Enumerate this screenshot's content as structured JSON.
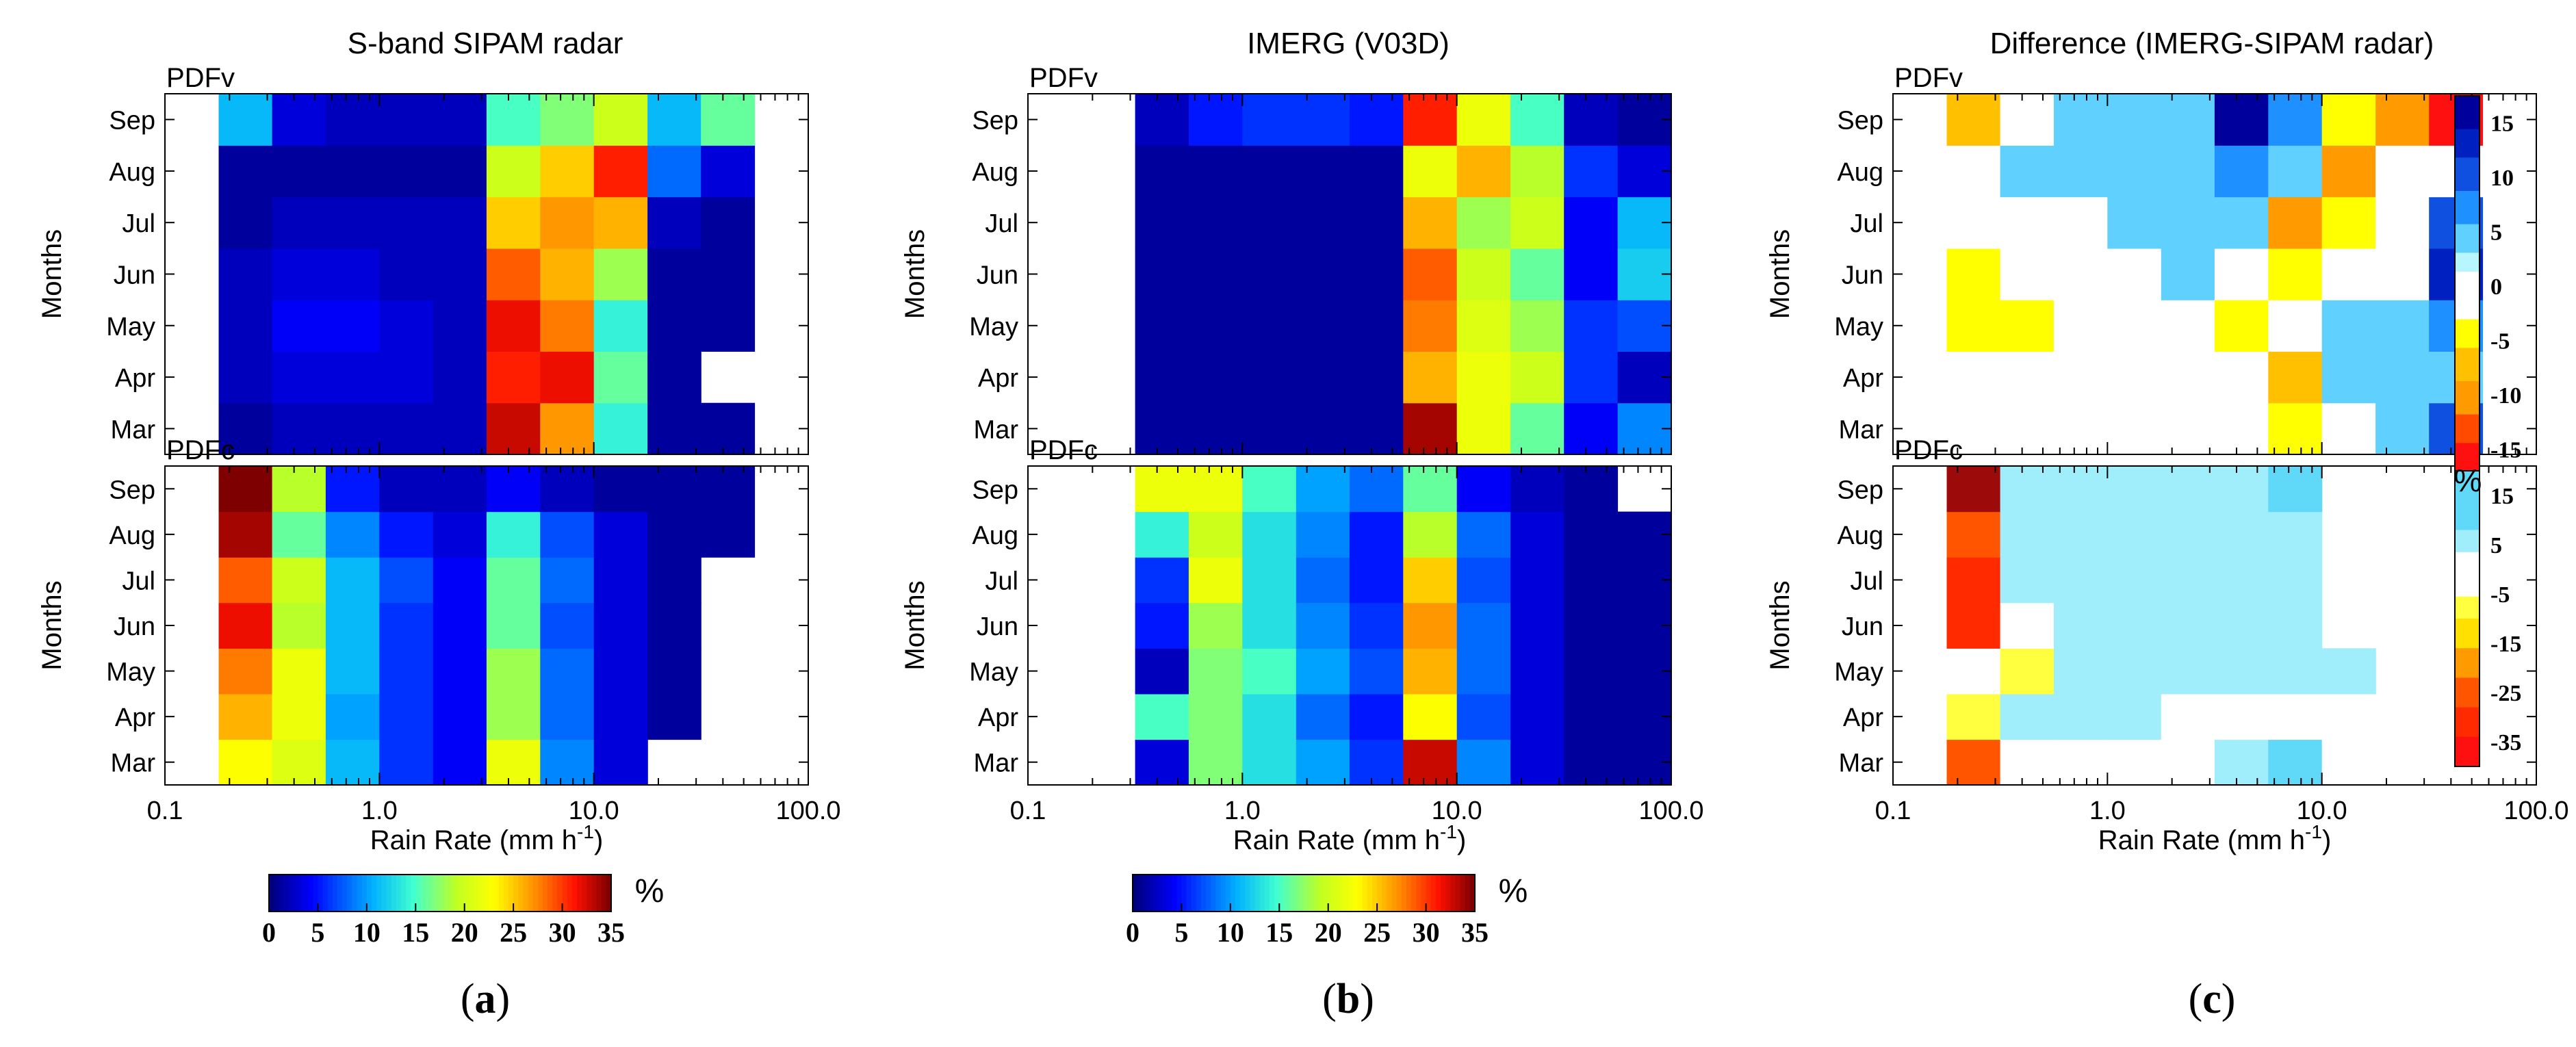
{
  "months": [
    "Mar",
    "Apr",
    "May",
    "Jun",
    "Jul",
    "Aug",
    "Sep"
  ],
  "x_ticks": [
    "0.1",
    "1.0",
    "10.0",
    "100.0"
  ],
  "xlabel": "Rain Rate (mm h",
  "xlabel_sup": "-1",
  "xlabel_end": ")",
  "ylabel": "Months",
  "pct_symbol": "%",
  "colormap_abs": {
    "ticks": [
      "0",
      "5",
      "10",
      "15",
      "20",
      "25",
      "30",
      "35"
    ],
    "min": 0,
    "max": 35
  },
  "colormap_diff_v": {
    "ticks": [
      "15",
      "10",
      "5",
      "0",
      "-5",
      "-10",
      "-15"
    ],
    "min": -15,
    "max": 15
  },
  "colormap_diff_c": {
    "ticks": [
      "15",
      "5",
      "-5",
      "-15",
      "-25",
      "-35"
    ],
    "min": -35,
    "max": 15
  },
  "chart_data": [
    {
      "type": "heatmap",
      "title": "S-band SIPAM radar",
      "panel_label": "a",
      "x_bin_edges": [
        0.1,
        0.178,
        0.316,
        0.562,
        1.0,
        1.78,
        3.16,
        5.62,
        10.0,
        17.8,
        31.6,
        56.2,
        100.0
      ],
      "y_categories": [
        "Mar",
        "Apr",
        "May",
        "Jun",
        "Jul",
        "Aug",
        "Sep"
      ],
      "subplots": [
        {
          "label": "PDFv",
          "values": [
            [
              null,
              1,
              2,
              2,
              2,
              2,
              33,
              27,
              14,
              1,
              1,
              null
            ],
            [
              null,
              2,
              3,
              3,
              3,
              2,
              31,
              32,
              16,
              1,
              null,
              null
            ],
            [
              null,
              2,
              4,
              4,
              3,
              2,
              32,
              28,
              14,
              1,
              1,
              null
            ],
            [
              null,
              2,
              3,
              3,
              2,
              2,
              29,
              26,
              18,
              1,
              1,
              null
            ],
            [
              null,
              1,
              2,
              2,
              2,
              2,
              25,
              27,
              26,
              2,
              1,
              null
            ],
            [
              null,
              1,
              1,
              1,
              1,
              1,
              20,
              25,
              31,
              8,
              3,
              null
            ],
            [
              null,
              11,
              3,
              2,
              2,
              2,
              15,
              17,
              20,
              11,
              16,
              null
            ]
          ]
        },
        {
          "label": "PDFc",
          "values": [
            [
              null,
              23,
              21,
              11,
              6,
              4,
              22,
              9,
              3,
              null,
              null,
              null
            ],
            [
              null,
              26,
              22,
              10,
              6,
              4,
              18,
              8,
              3,
              1,
              null,
              null
            ],
            [
              null,
              28,
              22,
              11,
              6,
              4,
              18,
              8,
              3,
              1,
              null,
              null
            ],
            [
              null,
              32,
              19,
              11,
              6,
              4,
              16,
              7,
              3,
              1,
              null,
              null
            ],
            [
              null,
              29,
              20,
              11,
              7,
              4,
              16,
              8,
              3,
              1,
              null,
              null
            ],
            [
              null,
              34,
              16,
              9,
              5,
              3,
              14,
              7,
              3,
              1,
              1,
              null
            ],
            [
              null,
              35,
              19,
              5,
              2,
              2,
              4,
              2,
              1,
              1,
              1,
              null
            ]
          ]
        }
      ]
    },
    {
      "type": "heatmap",
      "title": "IMERG (V03D)",
      "panel_label": "b",
      "x_bin_edges": [
        0.1,
        0.178,
        0.316,
        0.562,
        1.0,
        1.78,
        3.16,
        5.62,
        10.0,
        17.8,
        31.6,
        56.2,
        100.0
      ],
      "y_categories": [
        "Mar",
        "Apr",
        "May",
        "Jun",
        "Jul",
        "Aug",
        "Sep"
      ],
      "subplots": [
        {
          "label": "PDFv",
          "values": [
            [
              null,
              null,
              1,
              1,
              1,
              1,
              1,
              34,
              22,
              16,
              4,
              9
            ],
            [
              null,
              null,
              1,
              1,
              1,
              1,
              1,
              26,
              22,
              20,
              6,
              2
            ],
            [
              null,
              null,
              1,
              1,
              1,
              1,
              1,
              28,
              21,
              18,
              6,
              7
            ],
            [
              null,
              null,
              1,
              1,
              1,
              1,
              1,
              29,
              20,
              16,
              4,
              12
            ],
            [
              null,
              null,
              1,
              1,
              1,
              1,
              1,
              26,
              18,
              20,
              4,
              11
            ],
            [
              null,
              null,
              1,
              1,
              1,
              1,
              1,
              22,
              26,
              19,
              6,
              3
            ],
            [
              null,
              null,
              2,
              5,
              6,
              6,
              5,
              31,
              22,
              15,
              2,
              1
            ]
          ]
        },
        {
          "label": "PDFc",
          "values": [
            [
              null,
              null,
              3,
              17,
              13,
              10,
              6,
              33,
              9,
              3,
              1,
              1
            ],
            [
              null,
              null,
              15,
              17,
              13,
              8,
              5,
              23,
              7,
              3,
              1,
              1
            ],
            [
              null,
              null,
              2,
              17,
              15,
              10,
              7,
              26,
              8,
              3,
              1,
              1
            ],
            [
              null,
              null,
              5,
              18,
              13,
              9,
              6,
              27,
              8,
              3,
              1,
              1
            ],
            [
              null,
              null,
              6,
              22,
              13,
              8,
              5,
              25,
              7,
              3,
              1,
              1
            ],
            [
              null,
              null,
              14,
              20,
              13,
              9,
              5,
              19,
              8,
              3,
              1,
              1
            ],
            [
              null,
              null,
              22,
              22,
              15,
              10,
              8,
              16,
              4,
              2,
              1,
              null
            ]
          ]
        }
      ]
    },
    {
      "type": "heatmap",
      "title": "Difference (IMERG-SIPAM radar)",
      "panel_label": "c",
      "x_bin_edges": [
        0.1,
        0.178,
        0.316,
        0.562,
        1.0,
        1.78,
        3.16,
        5.62,
        10.0,
        17.8,
        31.6,
        56.2,
        100.0
      ],
      "y_categories": [
        "Mar",
        "Apr",
        "May",
        "Jun",
        "Jul",
        "Aug",
        "Sep"
      ],
      "subplots": [
        {
          "label": "PDFv",
          "values": [
            [
              null,
              -2,
              -2,
              -2,
              -2,
              0,
              0,
              -3,
              0,
              4,
              9,
              null
            ],
            [
              null,
              -2,
              -2,
              0,
              0,
              0,
              -2,
              -6,
              4,
              4,
              4,
              null
            ],
            [
              null,
              -3,
              -3,
              0,
              0,
              0,
              -4,
              -2,
              4,
              4,
              6,
              null
            ],
            [
              null,
              -3,
              -2,
              0,
              0,
              3,
              0,
              -4,
              -2,
              0,
              12,
              null
            ],
            [
              null,
              -2,
              0,
              0,
              3,
              3,
              3,
              -9,
              -3,
              0,
              9,
              null
            ],
            [
              null,
              -2,
              3,
              3,
              3,
              3,
              6,
              3,
              -9,
              -2,
              0,
              null
            ],
            [
              null,
              -6,
              0,
              4,
              4,
              4,
              13,
              6,
              -4,
              -9,
              -13,
              null
            ]
          ]
        },
        {
          "label": "PDFc",
          "values": [
            [
              null,
              -20,
              0,
              0,
              0,
              0,
              4,
              8,
              0,
              null,
              null,
              null
            ],
            [
              null,
              -8,
              2,
              2,
              2,
              0,
              0,
              0,
              null,
              null,
              null,
              null
            ],
            [
              null,
              -4,
              -8,
              2,
              2,
              2,
              2,
              4,
              2,
              null,
              null,
              null
            ],
            [
              null,
              -25,
              0,
              2,
              2,
              2,
              2,
              4,
              null,
              null,
              null,
              null
            ],
            [
              null,
              -25,
              2,
              2,
              2,
              2,
              2,
              2,
              null,
              null,
              null,
              null
            ],
            [
              null,
              -20,
              2,
              2,
              2,
              2,
              2,
              2,
              null,
              null,
              null,
              null
            ],
            [
              null,
              -35,
              4,
              4,
              4,
              4,
              4,
              6,
              null,
              null,
              null,
              null
            ]
          ]
        }
      ]
    }
  ]
}
